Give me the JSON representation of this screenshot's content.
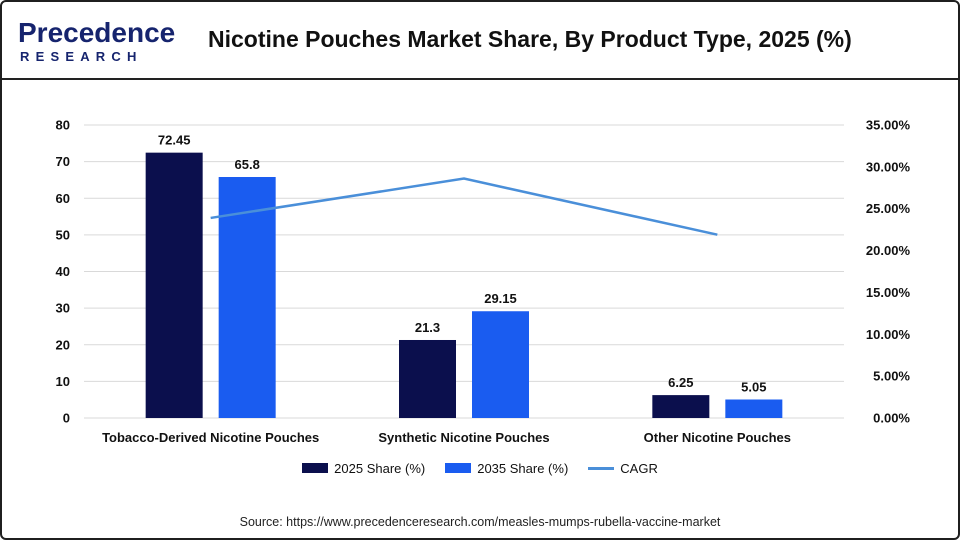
{
  "header": {
    "logo_top": "Precedence",
    "logo_bottom": "RESEARCH",
    "title": "Nicotine Pouches Market Share, By Product Type, 2025 (%)"
  },
  "colors": {
    "series_2025": "#0b0f4d",
    "series_2035": "#1a5cf0",
    "cagr_line": "#4a8fd9",
    "brand": "#16246e"
  },
  "chart_data": {
    "type": "bar",
    "categories": [
      "Tobacco-Derived Nicotine Pouches",
      "Synthetic Nicotine Pouches",
      "Other Nicotine Pouches"
    ],
    "series": [
      {
        "name": "2025 Share (%)",
        "values": [
          72.45,
          21.3,
          6.25
        ],
        "labels": [
          "72.45",
          "21.3",
          "6.25"
        ]
      },
      {
        "name": "2035 Share (%)",
        "values": [
          65.8,
          29.15,
          5.05
        ],
        "labels": [
          "65.8",
          "29.15",
          "5.05"
        ]
      }
    ],
    "line_series": {
      "name": "CAGR",
      "axis": "right",
      "values": [
        23.9,
        28.6,
        21.9
      ]
    },
    "ylim": [
      0,
      80
    ],
    "yticks": [
      "0",
      "10",
      "20",
      "30",
      "40",
      "50",
      "60",
      "70",
      "80"
    ],
    "y2lim": [
      0,
      35
    ],
    "y2ticks": [
      "0.00%",
      "5.00%",
      "10.00%",
      "15.00%",
      "20.00%",
      "25.00%",
      "30.00%",
      "35.00%"
    ],
    "grid": true,
    "legend_position": "bottom"
  },
  "legend": {
    "item1": "2025 Share (%)",
    "item2": "2035 Share (%)",
    "item3": "CAGR"
  },
  "footer": {
    "source": "Source: https://www.precedenceresearch.com/measles-mumps-rubella-vaccine-market"
  }
}
